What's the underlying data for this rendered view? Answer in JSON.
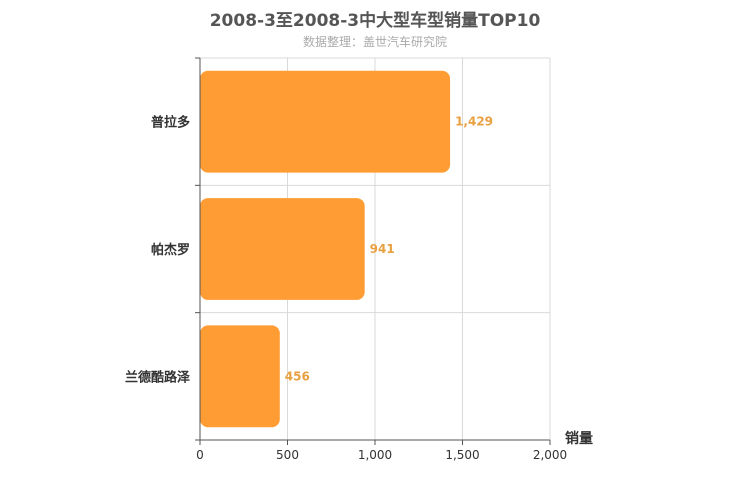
{
  "chart_data": {
    "type": "bar",
    "orientation": "horizontal",
    "title": "2008-3至2008-3中大型车型销量TOP10",
    "subtitle": "数据整理：盖世汽车研究院",
    "categories": [
      "普拉多",
      "帕杰罗",
      "兰德酷路泽"
    ],
    "values": [
      1429,
      941,
      456
    ],
    "value_labels": [
      "1,429",
      "941",
      "456"
    ],
    "xlabel": "销量",
    "ylabel": "",
    "xlim": [
      0,
      2000
    ],
    "xticks": [
      0,
      500,
      1000,
      1500,
      2000
    ],
    "xtick_labels": [
      "0",
      "500",
      "1,000",
      "1,500",
      "2,000"
    ],
    "grid": true,
    "bar_color": "#ff9c33",
    "label_color": "#e8a040"
  }
}
